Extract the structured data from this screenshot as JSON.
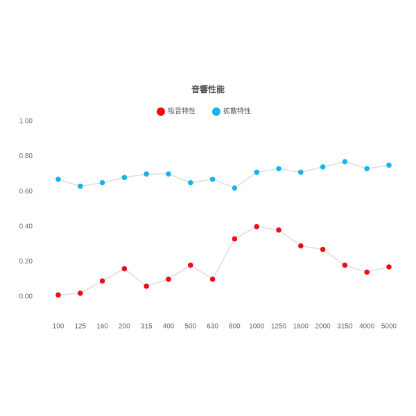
{
  "chart_data": {
    "type": "line",
    "title": "音響性能",
    "categories": [
      "100",
      "125",
      "160",
      "200",
      "315",
      "400",
      "500",
      "630",
      "800",
      "1000",
      "1250",
      "1600",
      "2000",
      "3150",
      "4000",
      "5000"
    ],
    "series": [
      {
        "name": "吸音特性",
        "color": "#f00d0d",
        "values": [
          0.01,
          0.02,
          0.09,
          0.16,
          0.06,
          0.1,
          0.18,
          0.1,
          0.33,
          0.4,
          0.38,
          0.29,
          0.27,
          0.18,
          0.14,
          0.17
        ]
      },
      {
        "name": "拡散特性",
        "color": "#13b5ea",
        "values": [
          0.67,
          0.63,
          0.65,
          0.68,
          0.7,
          0.7,
          0.65,
          0.67,
          0.62,
          0.71,
          0.73,
          0.71,
          0.74,
          0.77,
          0.73,
          0.75
        ]
      }
    ],
    "line_color": "#dddddd",
    "ylim": [
      0,
      1
    ],
    "yticks": [
      {
        "value": 0,
        "label": "0.00"
      },
      {
        "value": 0.2,
        "label": "0.20"
      },
      {
        "value": 0.4,
        "label": "0.40"
      },
      {
        "value": 0.6,
        "label": "0.60"
      },
      {
        "value": 0.8,
        "label": "0.80"
      },
      {
        "value": 1,
        "label": "1.00"
      }
    ],
    "grid": false
  }
}
